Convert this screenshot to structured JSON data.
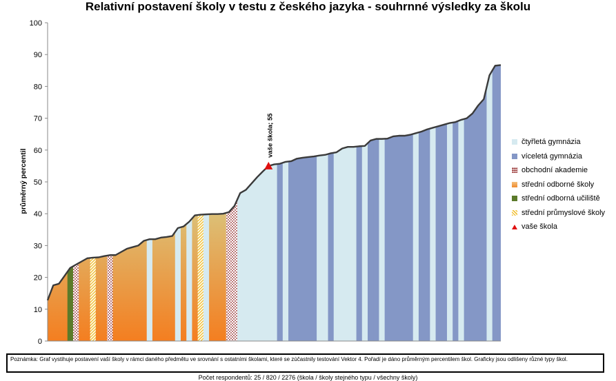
{
  "chart_data": {
    "type": "area",
    "title": "Relativní postavení školy v testu z českého jazyka - souhrnné výsledky za školu",
    "ylabel": "průměrný percentil",
    "ylim": [
      0,
      100
    ],
    "yticks": [
      "0",
      "10",
      "20",
      "30",
      "40",
      "50",
      "60",
      "70",
      "80",
      "90",
      "100"
    ],
    "grid": false,
    "legend_position": "right",
    "legend": [
      {
        "key": "ctyr",
        "label": "čtyřletá gymnázia"
      },
      {
        "key": "vic",
        "label": "víceletá gymnázia"
      },
      {
        "key": "obch",
        "label": "obchodní akademie"
      },
      {
        "key": "sos",
        "label": "střední odborné školy"
      },
      {
        "key": "sou",
        "label": "střední odborná učiliště"
      },
      {
        "key": "spr",
        "label": "střední průmyslové školy"
      },
      {
        "key": "nase",
        "label": "vaše škola"
      }
    ],
    "colors": {
      "ctyr": "#d6eaf0",
      "vic": "#8497c6",
      "sou": "#5b7a2a",
      "obch_dots": "#8b1a1a",
      "spr_stripe": "#f2c23a",
      "sos_top": "#cfe2a4",
      "sos_bottom": "#f47e20",
      "line": "#3a3a3a",
      "marker": "#e01010"
    },
    "series": [
      {
        "points": [
          [
            0,
            12.8,
            "sos"
          ],
          [
            1,
            17.5,
            "sos"
          ],
          [
            2,
            18,
            "sos"
          ],
          [
            3,
            20.5,
            "sos"
          ],
          [
            4,
            23,
            "sou"
          ],
          [
            5,
            24,
            "obch"
          ],
          [
            6,
            25,
            "sos"
          ],
          [
            7,
            26,
            "sos"
          ],
          [
            8,
            26.2,
            "spr"
          ],
          [
            9,
            26.3,
            "sos"
          ],
          [
            10,
            26.7,
            "sos"
          ],
          [
            11,
            27,
            "obch"
          ],
          [
            12,
            27,
            "sos"
          ],
          [
            13,
            28,
            "sos"
          ],
          [
            14,
            29,
            "sos"
          ],
          [
            15,
            29.5,
            "sos"
          ],
          [
            16,
            30,
            "sos"
          ],
          [
            17,
            31.5,
            "sos"
          ],
          [
            18,
            32,
            "ctyr"
          ],
          [
            19,
            32,
            "sos"
          ],
          [
            20,
            32.5,
            "sos"
          ],
          [
            21,
            32.7,
            "sos"
          ],
          [
            22,
            33,
            "sos"
          ],
          [
            23,
            35.5,
            "ctyr"
          ],
          [
            24,
            36,
            "sos"
          ],
          [
            25,
            37.5,
            "ctyr"
          ],
          [
            26,
            39.5,
            "sos"
          ],
          [
            27,
            39.7,
            "spr"
          ],
          [
            28,
            39.8,
            "ctyr"
          ],
          [
            29,
            39.9,
            "sos"
          ],
          [
            30,
            39.9,
            "sos"
          ],
          [
            31,
            40,
            "sos"
          ],
          [
            32,
            40.5,
            "obch"
          ],
          [
            33,
            42.5,
            "obch"
          ],
          [
            34,
            46.5,
            "ctyr"
          ],
          [
            35,
            47.5,
            "ctyr"
          ],
          [
            36,
            49.5,
            "ctyr"
          ],
          [
            37,
            51.5,
            "ctyr"
          ],
          [
            38,
            53.3,
            "ctyr"
          ],
          [
            39,
            55,
            "ctyr"
          ],
          [
            40,
            55.5,
            "ctyr"
          ],
          [
            41,
            55.7,
            "vic"
          ],
          [
            42,
            56.3,
            "ctyr"
          ],
          [
            43,
            56.5,
            "vic"
          ],
          [
            44,
            57.3,
            "vic"
          ],
          [
            45,
            57.6,
            "vic"
          ],
          [
            46,
            57.8,
            "vic"
          ],
          [
            47,
            58,
            "vic"
          ],
          [
            48,
            58.3,
            "ctyr"
          ],
          [
            49,
            58.5,
            "ctyr"
          ],
          [
            50,
            59,
            "vic"
          ],
          [
            51,
            59.3,
            "ctyr"
          ],
          [
            52,
            60.5,
            "ctyr"
          ],
          [
            53,
            61,
            "ctyr"
          ],
          [
            54,
            61,
            "ctyr"
          ],
          [
            55,
            61.2,
            "vic"
          ],
          [
            56,
            61.3,
            "ctyr"
          ],
          [
            57,
            63,
            "vic"
          ],
          [
            58,
            63.5,
            "vic"
          ],
          [
            59,
            63.5,
            "ctyr"
          ],
          [
            60,
            63.6,
            "vic"
          ],
          [
            61,
            64.3,
            "vic"
          ],
          [
            62,
            64.5,
            "vic"
          ],
          [
            63,
            64.5,
            "vic"
          ],
          [
            64,
            64.8,
            "vic"
          ],
          [
            65,
            65.3,
            "ctyr"
          ],
          [
            66,
            65.8,
            "vic"
          ],
          [
            67,
            66.5,
            "vic"
          ],
          [
            68,
            67,
            "ctyr"
          ],
          [
            69,
            67.5,
            "vic"
          ],
          [
            70,
            68,
            "vic"
          ],
          [
            71,
            68.5,
            "ctyr"
          ],
          [
            72,
            68.8,
            "vic"
          ],
          [
            73,
            69.5,
            "ctyr"
          ],
          [
            74,
            70,
            "vic"
          ],
          [
            75,
            71.5,
            "vic"
          ],
          [
            76,
            74,
            "vic"
          ],
          [
            77,
            76,
            "vic"
          ],
          [
            78,
            83.5,
            "ctyr"
          ],
          [
            79,
            86.5,
            "vic"
          ],
          [
            80,
            86.7,
            "vic"
          ]
        ]
      }
    ],
    "marker": {
      "index": 39,
      "value": 55,
      "label": "vaše škola; 55"
    }
  },
  "note": "Poznámka: Graf vystihuje postavení vaší školy v rámci daného předmětu ve srovnání s ostatními školami, které se zúčastnily testování Vektor 4. Pořadí je dáno průměrným percentilem škol. Graficky jsou odlišeny různé typy škol.",
  "footer": "Počet respondentů: 25 / 820 / 2276 (škola / školy stejného typu / všechny školy)"
}
